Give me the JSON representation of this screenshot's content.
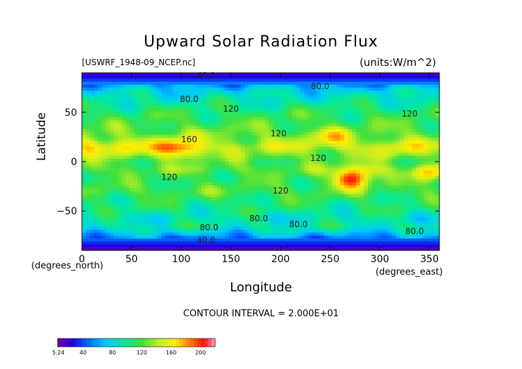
{
  "chart_data": {
    "type": "heatmap",
    "title": "Upward Solar Radiation Flux",
    "file_label": "[USWRF_1948-09_NCEP.nc]",
    "units_label": "(units:W/m^2)",
    "xlabel": "Longitude",
    "ylabel": "Latitude",
    "x_unit": "(degrees_east)",
    "y_unit": "(degrees_north)",
    "xlim": [
      0,
      360
    ],
    "ylim": [
      -90,
      90
    ],
    "x_ticks": [
      "0",
      "50",
      "100",
      "150",
      "200",
      "250",
      "300",
      "350"
    ],
    "x_tick_values": [
      0,
      50,
      100,
      150,
      200,
      250,
      300,
      350
    ],
    "y_ticks": [
      "50",
      "0",
      "−50"
    ],
    "y_tick_values": [
      50,
      0,
      -50
    ],
    "contour_interval": "CONTOUR INTERVAL = 2.000E+01",
    "contour_labels": [
      {
        "text": "40.0",
        "lon": 125,
        "lat": 87
      },
      {
        "text": "80.0",
        "lon": 240,
        "lat": 76
      },
      {
        "text": "80.0",
        "lon": 108,
        "lat": 63
      },
      {
        "text": "120",
        "lon": 150,
        "lat": 53
      },
      {
        "text": "120",
        "lon": 330,
        "lat": 48
      },
      {
        "text": "120",
        "lon": 198,
        "lat": 28
      },
      {
        "text": "160",
        "lon": 108,
        "lat": 22
      },
      {
        "text": "120",
        "lon": 238,
        "lat": 3
      },
      {
        "text": "120",
        "lon": 88,
        "lat": -16
      },
      {
        "text": "120",
        "lon": 200,
        "lat": -30
      },
      {
        "text": "80.0",
        "lon": 178,
        "lat": -58
      },
      {
        "text": "80.0",
        "lon": 218,
        "lat": -64
      },
      {
        "text": "80.0",
        "lon": 128,
        "lat": -67
      },
      {
        "text": "80.0",
        "lon": 335,
        "lat": -71
      },
      {
        "text": "40.0",
        "lon": 125,
        "lat": -80
      }
    ],
    "zonal_profile": [
      {
        "lat": 90,
        "value": 15
      },
      {
        "lat": 84,
        "value": 30
      },
      {
        "lat": 79,
        "value": 55
      },
      {
        "lat": 72,
        "value": 78
      },
      {
        "lat": 62,
        "value": 92
      },
      {
        "lat": 50,
        "value": 110
      },
      {
        "lat": 38,
        "value": 118
      },
      {
        "lat": 25,
        "value": 132
      },
      {
        "lat": 15,
        "value": 145
      },
      {
        "lat": 7,
        "value": 130
      },
      {
        "lat": 0,
        "value": 120
      },
      {
        "lat": -8,
        "value": 125
      },
      {
        "lat": -18,
        "value": 112
      },
      {
        "lat": -30,
        "value": 120
      },
      {
        "lat": -40,
        "value": 108
      },
      {
        "lat": -50,
        "value": 100
      },
      {
        "lat": -58,
        "value": 88
      },
      {
        "lat": -64,
        "value": 95
      },
      {
        "lat": -70,
        "value": 82
      },
      {
        "lat": -76,
        "value": 58
      },
      {
        "lat": -82,
        "value": 35
      },
      {
        "lat": -87,
        "value": 20
      },
      {
        "lat": -90,
        "value": 10
      }
    ],
    "hotspots": [
      {
        "lon": 90,
        "lat": 15,
        "value": 185
      },
      {
        "lon": 105,
        "lat": 10,
        "value": 170
      },
      {
        "lon": 10,
        "lat": 15,
        "value": 170
      },
      {
        "lon": 40,
        "lat": 12,
        "value": 160
      },
      {
        "lon": 270,
        "lat": -18,
        "value": 195
      },
      {
        "lon": 285,
        "lat": -10,
        "value": 160
      },
      {
        "lon": 350,
        "lat": -12,
        "value": 170
      },
      {
        "lon": 250,
        "lat": 25,
        "value": 165
      },
      {
        "lon": 320,
        "lat": 12,
        "value": 158
      }
    ],
    "colorbar": {
      "min_label": "5.24",
      "tick_labels": [
        "40",
        "80",
        "120",
        "160",
        "200"
      ],
      "tick_values": [
        40,
        80,
        120,
        160,
        200
      ],
      "min": 5.24,
      "max": 220,
      "stops": [
        {
          "value": 5,
          "color": "#7a00a8"
        },
        {
          "value": 25,
          "color": "#2000e0"
        },
        {
          "value": 45,
          "color": "#0060ff"
        },
        {
          "value": 70,
          "color": "#00c8ff"
        },
        {
          "value": 95,
          "color": "#00e8a0"
        },
        {
          "value": 120,
          "color": "#40e040"
        },
        {
          "value": 145,
          "color": "#c8ee20"
        },
        {
          "value": 165,
          "color": "#ffee00"
        },
        {
          "value": 185,
          "color": "#ff8000"
        },
        {
          "value": 205,
          "color": "#ff1010"
        },
        {
          "value": 220,
          "color": "#ffa0b4"
        }
      ]
    }
  }
}
